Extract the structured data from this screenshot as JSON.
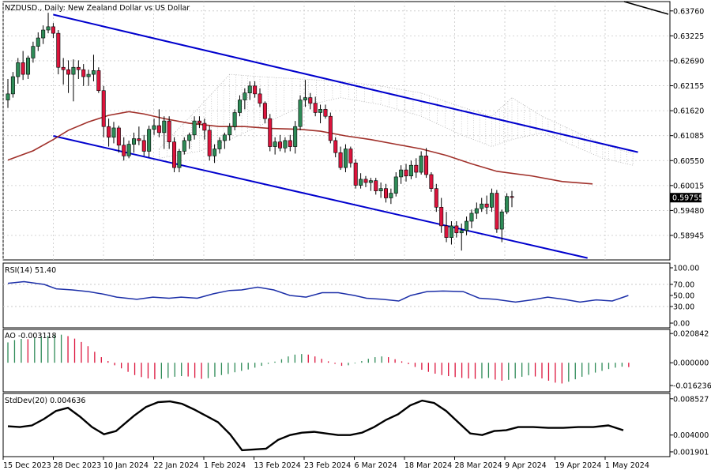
{
  "chart_data": {
    "type": "candlestick",
    "symbol_title": "NZDUSD., Daily:  New Zealand Dollar vs US Dollar",
    "colors": {
      "bull": "#2e8b57",
      "bear": "#dc143c",
      "channel": "#0000cd",
      "ma": "#a0302a",
      "rsi": "#1c2fa8",
      "stddev": "#000000",
      "ao_up": "#2e8b57",
      "ao_down": "#dc143c",
      "grid": "#c8c8c8",
      "cloud": "#b0b0b0"
    },
    "price_axis": {
      "min": 0.5842,
      "max": 0.6396,
      "ticks": [
        "0.63760",
        "0.63225",
        "0.62690",
        "0.62155",
        "0.61620",
        "0.61085",
        "0.60550",
        "0.60015",
        "0.59480",
        "0.58945"
      ],
      "current_price": "0.59755"
    },
    "x_axis_labels": [
      "15 Dec 2023",
      "28 Dec 2023",
      "10 Jan 2024",
      "22 Jan 2024",
      "1 Feb 2024",
      "13 Feb 2024",
      "23 Feb 2024",
      "6 Mar 2024",
      "18 Mar 2024",
      "28 Mar 2024",
      "9 Apr 2024",
      "19 Apr 2024",
      "1 May 2024"
    ],
    "candles": [
      [
        0.6185,
        0.623,
        0.6168,
        0.6198
      ],
      [
        0.6198,
        0.6245,
        0.619,
        0.6235
      ],
      [
        0.6235,
        0.6275,
        0.622,
        0.6265
      ],
      [
        0.6265,
        0.629,
        0.6228,
        0.624
      ],
      [
        0.624,
        0.628,
        0.623,
        0.6275
      ],
      [
        0.6275,
        0.631,
        0.6265,
        0.63
      ],
      [
        0.63,
        0.633,
        0.629,
        0.6318
      ],
      [
        0.6318,
        0.6345,
        0.6305,
        0.6335
      ],
      [
        0.6335,
        0.6372,
        0.6328,
        0.6342
      ],
      [
        0.6342,
        0.635,
        0.6318,
        0.6328
      ],
      [
        0.6328,
        0.6335,
        0.624,
        0.6255
      ],
      [
        0.6255,
        0.6275,
        0.6218,
        0.625
      ],
      [
        0.625,
        0.627,
        0.62,
        0.624
      ],
      [
        0.624,
        0.6272,
        0.6182,
        0.6255
      ],
      [
        0.6255,
        0.627,
        0.623,
        0.625
      ],
      [
        0.625,
        0.6262,
        0.6215,
        0.6235
      ],
      [
        0.6235,
        0.625,
        0.6215,
        0.624
      ],
      [
        0.624,
        0.6282,
        0.6225,
        0.6248
      ],
      [
        0.6248,
        0.6255,
        0.62,
        0.6205
      ],
      [
        0.6205,
        0.6215,
        0.6105,
        0.6128
      ],
      [
        0.6128,
        0.6145,
        0.6085,
        0.6105
      ],
      [
        0.6105,
        0.6138,
        0.6092,
        0.6125
      ],
      [
        0.6125,
        0.613,
        0.6072,
        0.6088
      ],
      [
        0.6088,
        0.6105,
        0.6055,
        0.6065
      ],
      [
        0.6065,
        0.6098,
        0.606,
        0.609
      ],
      [
        0.609,
        0.6115,
        0.6072,
        0.6102
      ],
      [
        0.6102,
        0.6128,
        0.6088,
        0.6098
      ],
      [
        0.6098,
        0.611,
        0.6065,
        0.6075
      ],
      [
        0.6075,
        0.613,
        0.6062,
        0.6122
      ],
      [
        0.6122,
        0.6145,
        0.611,
        0.613
      ],
      [
        0.613,
        0.6165,
        0.6105,
        0.6115
      ],
      [
        0.6115,
        0.615,
        0.608,
        0.614
      ],
      [
        0.614,
        0.615,
        0.608,
        0.6095
      ],
      [
        0.6095,
        0.6105,
        0.603,
        0.604
      ],
      [
        0.604,
        0.608,
        0.603,
        0.6075
      ],
      [
        0.6075,
        0.6105,
        0.6068,
        0.6098
      ],
      [
        0.6098,
        0.6115,
        0.608,
        0.611
      ],
      [
        0.611,
        0.615,
        0.61,
        0.614
      ],
      [
        0.614,
        0.615,
        0.6125,
        0.6135
      ],
      [
        0.6135,
        0.6145,
        0.61,
        0.612
      ],
      [
        0.612,
        0.613,
        0.6055,
        0.6065
      ],
      [
        0.6065,
        0.609,
        0.605,
        0.608
      ],
      [
        0.608,
        0.6105,
        0.607,
        0.6098
      ],
      [
        0.6098,
        0.6115,
        0.608,
        0.611
      ],
      [
        0.611,
        0.6135,
        0.6098,
        0.6128
      ],
      [
        0.6128,
        0.6165,
        0.612,
        0.6158
      ],
      [
        0.6158,
        0.6195,
        0.615,
        0.6185
      ],
      [
        0.6185,
        0.621,
        0.6165,
        0.62
      ],
      [
        0.62,
        0.6225,
        0.6185,
        0.6215
      ],
      [
        0.6215,
        0.6225,
        0.619,
        0.6198
      ],
      [
        0.6198,
        0.621,
        0.617,
        0.6178
      ],
      [
        0.6178,
        0.6182,
        0.6135,
        0.6145
      ],
      [
        0.6145,
        0.6155,
        0.6075,
        0.6085
      ],
      [
        0.6085,
        0.6105,
        0.6068,
        0.6095
      ],
      [
        0.6095,
        0.611,
        0.6075,
        0.6082
      ],
      [
        0.6082,
        0.6105,
        0.6072,
        0.6098
      ],
      [
        0.6098,
        0.611,
        0.6075,
        0.6085
      ],
      [
        0.6085,
        0.614,
        0.607,
        0.6128
      ],
      [
        0.6128,
        0.6195,
        0.612,
        0.6185
      ],
      [
        0.6185,
        0.6228,
        0.617,
        0.619
      ],
      [
        0.619,
        0.62,
        0.6165,
        0.6178
      ],
      [
        0.6178,
        0.6192,
        0.615,
        0.6158
      ],
      [
        0.6158,
        0.6175,
        0.6135,
        0.6165
      ],
      [
        0.6165,
        0.6175,
        0.6145,
        0.615
      ],
      [
        0.615,
        0.6158,
        0.6092,
        0.6098
      ],
      [
        0.6098,
        0.6105,
        0.6062,
        0.6072
      ],
      [
        0.6072,
        0.6085,
        0.6035,
        0.604
      ],
      [
        0.604,
        0.609,
        0.603,
        0.608
      ],
      [
        0.608,
        0.6085,
        0.604,
        0.605
      ],
      [
        0.605,
        0.6058,
        0.5995,
        0.6002
      ],
      [
        0.6002,
        0.6028,
        0.5995,
        0.6015
      ],
      [
        0.6015,
        0.6022,
        0.5998,
        0.6008
      ],
      [
        0.6008,
        0.6018,
        0.599,
        0.6012
      ],
      [
        0.6012,
        0.6018,
        0.5982,
        0.599
      ],
      [
        0.599,
        0.6008,
        0.5975,
        0.5995
      ],
      [
        0.5995,
        0.6005,
        0.5965,
        0.5975
      ],
      [
        0.5975,
        0.5995,
        0.5962,
        0.5985
      ],
      [
        0.5985,
        0.603,
        0.5978,
        0.602
      ],
      [
        0.602,
        0.6045,
        0.6005,
        0.6035
      ],
      [
        0.6035,
        0.6048,
        0.601,
        0.6022
      ],
      [
        0.6022,
        0.6055,
        0.6015,
        0.6045
      ],
      [
        0.6045,
        0.606,
        0.6018,
        0.603
      ],
      [
        0.603,
        0.6075,
        0.6025,
        0.6065
      ],
      [
        0.6065,
        0.6082,
        0.6018,
        0.6025
      ],
      [
        0.6025,
        0.603,
        0.5988,
        0.5995
      ],
      [
        0.5995,
        0.6005,
        0.5945,
        0.5955
      ],
      [
        0.5955,
        0.5975,
        0.59,
        0.5915
      ],
      [
        0.5915,
        0.5945,
        0.588,
        0.589
      ],
      [
        0.589,
        0.5925,
        0.5875,
        0.5915
      ],
      [
        0.5915,
        0.5925,
        0.589,
        0.59
      ],
      [
        0.59,
        0.592,
        0.5862,
        0.5905
      ],
      [
        0.5905,
        0.5935,
        0.5895,
        0.5925
      ],
      [
        0.5925,
        0.595,
        0.591,
        0.5942
      ],
      [
        0.5942,
        0.5965,
        0.593,
        0.5952
      ],
      [
        0.5952,
        0.5975,
        0.5945,
        0.5962
      ],
      [
        0.5962,
        0.598,
        0.594,
        0.5955
      ],
      [
        0.5955,
        0.5995,
        0.5945,
        0.5985
      ],
      [
        0.5985,
        0.5992,
        0.59,
        0.5908
      ],
      [
        0.5908,
        0.595,
        0.588,
        0.5945
      ],
      [
        0.5945,
        0.5985,
        0.594,
        0.5978
      ],
      [
        0.5978,
        0.599,
        0.5955,
        0.5976
      ]
    ],
    "moving_average": [
      [
        0,
        0.6056
      ],
      [
        5,
        0.6076
      ],
      [
        9,
        0.61
      ],
      [
        12,
        0.612
      ],
      [
        16,
        0.6138
      ],
      [
        20,
        0.6152
      ],
      [
        24,
        0.616
      ],
      [
        27,
        0.6155
      ],
      [
        31,
        0.6145
      ],
      [
        36,
        0.6135
      ],
      [
        42,
        0.6128
      ],
      [
        47,
        0.6128
      ],
      [
        52,
        0.6124
      ],
      [
        58,
        0.6122
      ],
      [
        62,
        0.6118
      ],
      [
        67,
        0.6108
      ],
      [
        72,
        0.61
      ],
      [
        77,
        0.609
      ],
      [
        82,
        0.608
      ],
      [
        87,
        0.6066
      ],
      [
        92,
        0.6048
      ],
      [
        97,
        0.6032
      ],
      [
        104,
        0.6022
      ],
      [
        110,
        0.601
      ],
      [
        116,
        0.6005
      ]
    ],
    "channel_lines": [
      {
        "start": [
          9,
          0.6368
        ],
        "end": [
          125,
          0.6073
        ]
      },
      {
        "start": [
          9,
          0.6108
        ],
        "end": [
          115,
          0.5846
        ]
      }
    ],
    "cloud": [
      [
        30,
        0.606,
        0.608
      ],
      [
        38,
        0.6075,
        0.617
      ],
      [
        44,
        0.61,
        0.624
      ],
      [
        50,
        0.613,
        0.6235
      ],
      [
        58,
        0.617,
        0.623
      ],
      [
        66,
        0.619,
        0.6225
      ],
      [
        74,
        0.6175,
        0.6215
      ],
      [
        82,
        0.615,
        0.62
      ],
      [
        90,
        0.611,
        0.617
      ],
      [
        96,
        0.6085,
        0.615
      ],
      [
        100,
        0.61,
        0.619
      ],
      [
        106,
        0.6115,
        0.615
      ],
      [
        112,
        0.6088,
        0.612
      ],
      [
        118,
        0.606,
        0.609
      ],
      [
        124,
        0.6045,
        0.607
      ]
    ],
    "rsi": {
      "label": "RSI(14) 51.40",
      "ticks": [
        "100.00",
        "70.00",
        "50.00",
        "30.00",
        "0.00"
      ],
      "range": [
        0,
        100
      ],
      "levels": [
        30,
        70
      ],
      "points": [
        [
          0,
          72
        ],
        [
          4,
          75
        ],
        [
          7,
          72
        ],
        [
          9,
          70
        ],
        [
          12,
          62
        ],
        [
          16,
          60
        ],
        [
          20,
          57
        ],
        [
          24,
          52
        ],
        [
          27,
          47
        ],
        [
          32,
          43
        ],
        [
          36,
          47
        ],
        [
          40,
          45
        ],
        [
          43,
          47
        ],
        [
          47,
          45
        ],
        [
          51,
          53
        ],
        [
          55,
          59
        ],
        [
          58,
          60
        ],
        [
          62,
          65
        ],
        [
          66,
          60
        ],
        [
          70,
          50
        ],
        [
          74,
          47
        ],
        [
          78,
          55
        ],
        [
          82,
          55
        ],
        [
          86,
          50
        ],
        [
          89,
          45
        ],
        [
          93,
          43
        ],
        [
          97,
          40
        ],
        [
          100,
          50
        ],
        [
          104,
          57
        ],
        [
          108,
          58
        ],
        [
          113,
          57
        ],
        [
          117,
          45
        ],
        [
          121,
          43
        ],
        [
          126,
          38
        ],
        [
          130,
          42
        ],
        [
          134,
          47
        ],
        [
          138,
          43
        ],
        [
          142,
          38
        ],
        [
          146,
          42
        ],
        [
          150,
          40
        ],
        [
          154,
          50
        ]
      ]
    },
    "ao": {
      "label": "AO -0.003118",
      "ticks": [
        "0.020842",
        "0.000000",
        "-0.016236"
      ],
      "range": [
        -0.0185,
        0.0215
      ],
      "values": [
        0.0145,
        0.0162,
        0.017,
        0.0168,
        0.0178,
        0.0188,
        0.0192,
        0.0198,
        0.02,
        0.019,
        0.0172,
        0.0148,
        0.0118,
        0.0078,
        0.004,
        0.0012,
        -0.0018,
        -0.004,
        -0.0065,
        -0.0088,
        -0.0102,
        -0.0112,
        -0.0118,
        -0.0115,
        -0.0108,
        -0.01,
        -0.0095,
        -0.0098,
        -0.0108,
        -0.0115,
        -0.011,
        -0.01,
        -0.0088,
        -0.008,
        -0.0068,
        -0.0058,
        -0.0048,
        -0.0035,
        -0.0022,
        -0.0008,
        0.0008,
        0.0025,
        0.0045,
        0.0058,
        0.0062,
        0.0058,
        0.0045,
        0.0028,
        0.001,
        -0.0008,
        -0.0022,
        -0.0018,
        -0.0005,
        0.0012,
        0.0028,
        0.004,
        0.0045,
        0.004,
        0.0025,
        0.001,
        -0.001,
        -0.003,
        -0.005,
        -0.0065,
        -0.0078,
        -0.0088,
        -0.0095,
        -0.0102,
        -0.0108,
        -0.0112,
        -0.0115,
        -0.0112,
        -0.0108,
        -0.012,
        -0.0128,
        -0.0122,
        -0.0112,
        -0.01,
        -0.009,
        -0.0098,
        -0.0112,
        -0.0128,
        -0.0142,
        -0.0148,
        -0.0135,
        -0.0118,
        -0.01,
        -0.0085,
        -0.007,
        -0.0058,
        -0.0045,
        -0.0035,
        -0.0028,
        -0.0031
      ]
    },
    "stddev": {
      "label": "StdDev(20) 0.004636",
      "ticks": [
        "0.008527",
        "0.004000",
        "0.001901"
      ],
      "range": [
        0.0017,
        0.0088
      ],
      "points": [
        [
          0,
          0.0051
        ],
        [
          4,
          0.005
        ],
        [
          8,
          0.0052
        ],
        [
          12,
          0.006
        ],
        [
          16,
          0.007
        ],
        [
          20,
          0.0074
        ],
        [
          24,
          0.0063
        ],
        [
          28,
          0.005
        ],
        [
          32,
          0.0041
        ],
        [
          36,
          0.0045
        ],
        [
          42,
          0.0064
        ],
        [
          46,
          0.0075
        ],
        [
          50,
          0.0081
        ],
        [
          54,
          0.0082
        ],
        [
          58,
          0.0079
        ],
        [
          62,
          0.0072
        ],
        [
          66,
          0.0064
        ],
        [
          70,
          0.0056
        ],
        [
          74,
          0.0041
        ],
        [
          78,
          0.0021
        ],
        [
          82,
          0.0022
        ],
        [
          86,
          0.0023
        ],
        [
          90,
          0.0034
        ],
        [
          94,
          0.004
        ],
        [
          98,
          0.0043
        ],
        [
          102,
          0.0044
        ],
        [
          106,
          0.0042
        ],
        [
          110,
          0.004
        ],
        [
          114,
          0.004
        ],
        [
          118,
          0.0043
        ],
        [
          122,
          0.005
        ],
        [
          126,
          0.0059
        ],
        [
          130,
          0.0066
        ],
        [
          134,
          0.0077
        ],
        [
          138,
          0.0083
        ],
        [
          142,
          0.008
        ],
        [
          146,
          0.007
        ],
        [
          150,
          0.0056
        ],
        [
          154,
          0.0042
        ],
        [
          158,
          0.004
        ],
        [
          162,
          0.0045
        ],
        [
          166,
          0.0046
        ],
        [
          170,
          0.005
        ],
        [
          175,
          0.005
        ],
        [
          180,
          0.0049
        ],
        [
          185,
          0.0049
        ],
        [
          190,
          0.005
        ],
        [
          195,
          0.005
        ],
        [
          200,
          0.0052
        ],
        [
          205,
          0.0046
        ]
      ]
    }
  }
}
